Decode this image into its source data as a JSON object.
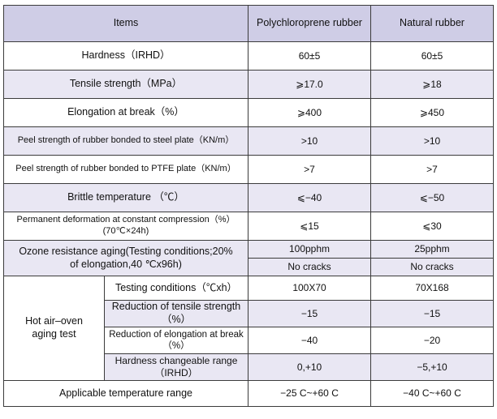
{
  "header": {
    "items": "Items",
    "col1": "Polychloroprene rubber",
    "col2": "Natural rubber"
  },
  "rows": [
    {
      "label": "Hardness（IRHD）",
      "v1": "60±5",
      "v2": "60±5"
    },
    {
      "label": "Tensile strength（MPa）",
      "v1": "⩾17.0",
      "v2": "⩾18"
    },
    {
      "label": "Elongation at break（%）",
      "v1": "⩾400",
      "v2": "⩾450"
    },
    {
      "label": "Peel strength of rubber bonded to steel plate（KN/m）",
      "v1": ">10",
      "v2": ">10"
    },
    {
      "label": "Peel strength of rubber bonded to PTFE plate（KN/m）",
      "v1": ">7",
      "v2": ">7"
    },
    {
      "label": "Brittle temperature （℃）",
      "v1": "⩽−40",
      "v2": "⩽−50"
    },
    {
      "label_line1": "Permanent deformation at constant compression（%）",
      "label_line2": "(70℃×24h)",
      "v1": "⩽15",
      "v2": "⩽30"
    }
  ],
  "ozone": {
    "label": "Ozone resistance aging(Testing conditions;20% of elongation,40 ℃x96h)",
    "v1_conc": "100pphm",
    "v2_conc": "25pphm",
    "v1_result": "No cracks",
    "v2_result": "No cracks"
  },
  "hot_air": {
    "label": "Hot air–oven aging test",
    "sub": [
      {
        "label": "Testing conditions（℃xh）",
        "v1": "100X70",
        "v2": "70X168"
      },
      {
        "label": "Reduction of tensile strength（%）",
        "v1": "−15",
        "v2": "−15"
      },
      {
        "label": "Reduction of elongation at break（%）",
        "v1": "−40",
        "v2": "−20"
      },
      {
        "label": "Hardness changeable range（IRHD）",
        "v1": "0,+10",
        "v2": "−5,+10"
      }
    ]
  },
  "footer": {
    "label": "Applicable temperature range",
    "v1": "−25 C~+60 C",
    "v2": "−40 C~+60 C"
  }
}
